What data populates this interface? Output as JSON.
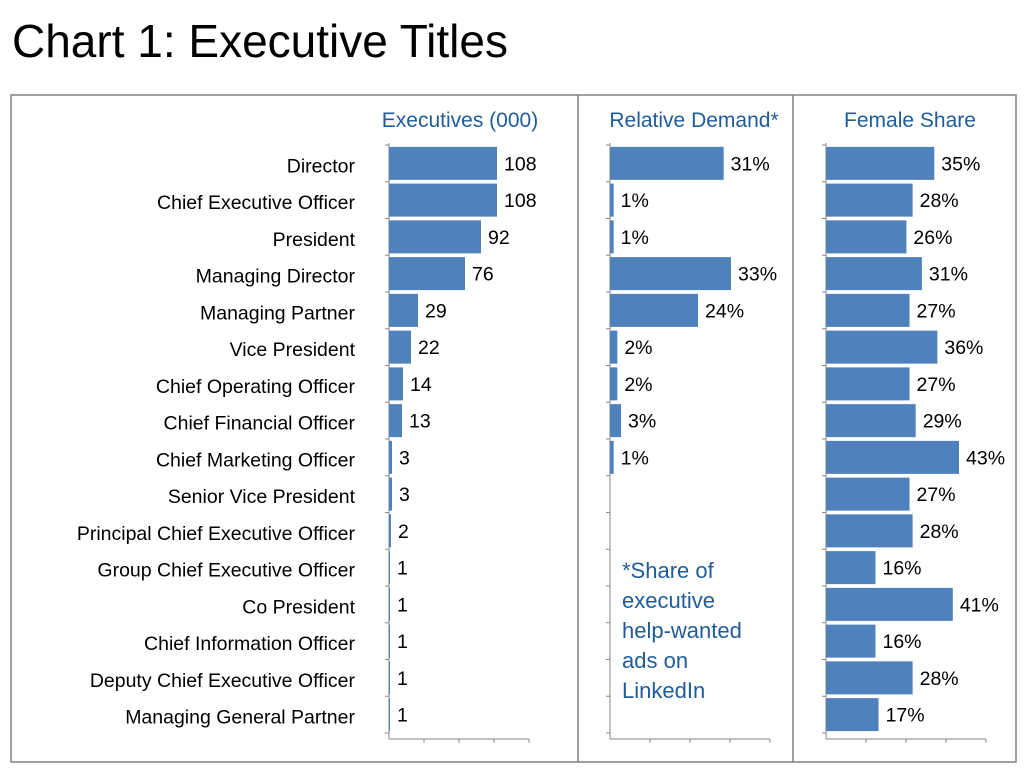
{
  "title": "Chart 1: Executive Titles",
  "colors": {
    "bar": "#4f81bd",
    "header": "#1f5c99",
    "frame": "#808080"
  },
  "chart_data": {
    "type": "bar",
    "orientation": "horizontal",
    "categories": [
      "Director",
      "Chief Executive Officer",
      "President",
      "Managing Director",
      "Managing Partner",
      "Vice President",
      "Chief Operating Officer",
      "Chief Financial Officer",
      "Chief Marketing Officer",
      "Senior Vice President",
      "Principal Chief Executive Officer",
      "Group Chief Executive Officer",
      "Co President",
      "Chief Information Officer",
      "Deputy Chief Executive Officer",
      "Managing General Partner"
    ],
    "panels": [
      {
        "name": "Executives (000)",
        "unit": "",
        "xlim": [
          0,
          140
        ],
        "values": [
          108,
          108,
          92,
          76,
          29,
          22,
          14,
          13,
          3,
          3,
          2,
          1,
          1,
          1,
          1,
          1
        ],
        "labels": [
          "108",
          "108",
          "92",
          "76",
          "29",
          "22",
          "14",
          "13",
          "3",
          "3",
          "2",
          "1",
          "1",
          "1",
          "1",
          "1"
        ]
      },
      {
        "name": "Relative Demand*",
        "unit": "%",
        "xlim": [
          0,
          40
        ],
        "values": [
          31,
          1,
          1,
          33,
          24,
          2,
          2,
          3,
          1,
          null,
          null,
          null,
          null,
          null,
          null,
          null
        ],
        "labels": [
          "31%",
          "1%",
          "1%",
          "33%",
          "24%",
          "2%",
          "2%",
          "3%",
          "1%",
          "",
          "",
          "",
          "",
          "",
          "",
          ""
        ],
        "footnote": [
          "*Share of",
          "executive",
          "help-wanted",
          "ads on",
          "LinkedIn"
        ]
      },
      {
        "name": "Female Share",
        "unit": "%",
        "xlim": [
          0,
          50
        ],
        "values": [
          35,
          28,
          26,
          31,
          27,
          36,
          27,
          29,
          43,
          27,
          28,
          16,
          41,
          16,
          28,
          17
        ],
        "labels": [
          "35%",
          "28%",
          "26%",
          "31%",
          "27%",
          "36%",
          "27%",
          "29%",
          "43%",
          "27%",
          "28%",
          "16%",
          "41%",
          "16%",
          "28%",
          "17%"
        ]
      }
    ]
  }
}
